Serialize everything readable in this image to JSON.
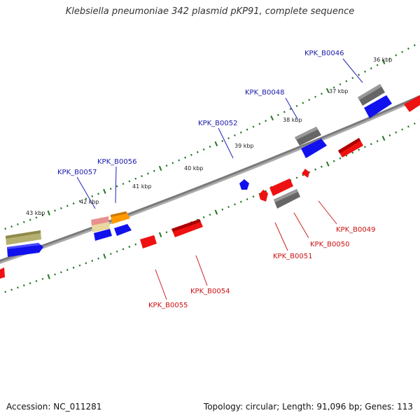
{
  "title": "Klebsiella pneumoniae 342 plasmid pKP91, complete sequence",
  "footer": {
    "accession": "Accession: NC_011281",
    "summary": "Topology: circular; Length: 91,096 bp; Genes: 113"
  },
  "scale_labels": [
    "43 kbp",
    "42 kbp",
    "41 kbp",
    "40 kbp",
    "39 kbp",
    "38 kbp",
    "37 kbp",
    "36 kbp"
  ],
  "gene_labels": {
    "forward": [
      "KPK_B0057",
      "KPK_B0056",
      "KPK_B0052",
      "KPK_B0048",
      "KPK_B0046"
    ],
    "reverse": [
      "KPK_B0055",
      "KPK_B0054",
      "KPK_B0051",
      "KPK_B0050",
      "KPK_B0049"
    ]
  },
  "colors": {
    "forward_label": "#1a1aaa",
    "reverse_label": "#cc1111",
    "blue_gene": "#1111ee",
    "red_gene": "#ee1111",
    "gray_gene": "#666666",
    "tick": "#227722",
    "backbone": "#888888"
  }
}
